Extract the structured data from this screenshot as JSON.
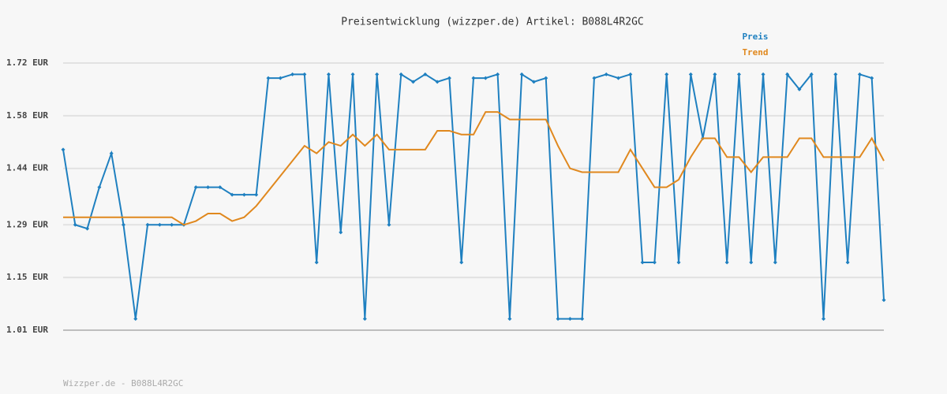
{
  "chart_data": {
    "type": "line",
    "title": "Preisentwicklung (wizzper.de) Artikel: B088L4R2GC",
    "footer": "Wizzper.de - B088L4R2GC",
    "categories": [
      null,
      null,
      null,
      null,
      null,
      null,
      null,
      null,
      null,
      null,
      null,
      null,
      null,
      null,
      null,
      null,
      null,
      null,
      null,
      null,
      null,
      null,
      null,
      null,
      null,
      null,
      null,
      null,
      null,
      null,
      null,
      null,
      null,
      null,
      null,
      null,
      null,
      null,
      null,
      null,
      null,
      null,
      null,
      null,
      null,
      null,
      null,
      null,
      null,
      null,
      null,
      null,
      null,
      null,
      null,
      null,
      null,
      null,
      null,
      null,
      null,
      null,
      null,
      null,
      null,
      null,
      null,
      null,
      null
    ],
    "series": [
      {
        "name": "Preis",
        "color": "#1f80c0",
        "markers": true,
        "values": [
          1.49,
          1.29,
          1.28,
          1.39,
          1.48,
          1.29,
          1.04,
          1.29,
          1.29,
          1.29,
          1.29,
          1.39,
          1.39,
          1.39,
          1.37,
          1.37,
          1.37,
          1.68,
          1.68,
          1.69,
          1.69,
          1.19,
          1.69,
          1.27,
          1.69,
          1.04,
          1.69,
          1.29,
          1.69,
          1.67,
          1.69,
          1.67,
          1.68,
          1.19,
          1.68,
          1.68,
          1.69,
          1.04,
          1.69,
          1.67,
          1.68,
          1.04,
          1.04,
          1.04,
          1.68,
          1.69,
          1.68,
          1.69,
          1.19,
          1.19,
          1.69,
          1.19,
          1.69,
          1.52,
          1.69,
          1.19,
          1.69,
          1.19,
          1.69,
          1.19,
          1.69,
          1.65,
          1.69,
          1.04,
          1.69,
          1.19,
          1.69,
          1.68,
          1.09
        ]
      },
      {
        "name": "Trend",
        "color": "#e0881e",
        "markers": false,
        "values": [
          1.31,
          1.31,
          1.31,
          1.31,
          1.31,
          1.31,
          1.31,
          1.31,
          1.31,
          1.31,
          1.29,
          1.3,
          1.32,
          1.32,
          1.3,
          1.31,
          1.34,
          1.38,
          1.42,
          1.46,
          1.5,
          1.48,
          1.51,
          1.5,
          1.53,
          1.5,
          1.53,
          1.49,
          1.49,
          1.49,
          1.49,
          1.54,
          1.54,
          1.53,
          1.53,
          1.59,
          1.59,
          1.57,
          1.57,
          1.57,
          1.57,
          1.5,
          1.44,
          1.43,
          1.43,
          1.43,
          1.43,
          1.49,
          1.44,
          1.39,
          1.39,
          1.41,
          1.47,
          1.52,
          1.52,
          1.47,
          1.47,
          1.43,
          1.47,
          1.47,
          1.47,
          1.52,
          1.52,
          1.47,
          1.47,
          1.47,
          1.47,
          1.52,
          1.46
        ]
      }
    ],
    "ylim": [
      1.01,
      1.72
    ],
    "yticks": [
      {
        "value": 1.01,
        "label": "1.01 EUR"
      },
      {
        "value": 1.15,
        "label": "1.15 EUR"
      },
      {
        "value": 1.29,
        "label": "1.29 EUR"
      },
      {
        "value": 1.44,
        "label": "1.44 EUR"
      },
      {
        "value": 1.58,
        "label": "1.58 EUR"
      },
      {
        "value": 1.72,
        "label": "1.72 EUR"
      }
    ],
    "grid": true,
    "legend": "top-right"
  }
}
